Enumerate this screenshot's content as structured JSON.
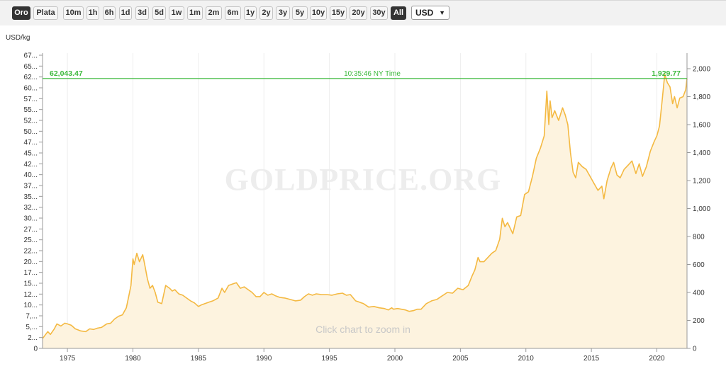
{
  "toolbar": {
    "metal_buttons": [
      {
        "label": "Oro",
        "active": true
      },
      {
        "label": "Plata",
        "active": false
      }
    ],
    "range_buttons": [
      {
        "label": "10m",
        "active": false
      },
      {
        "label": "1h",
        "active": false
      },
      {
        "label": "6h",
        "active": false
      },
      {
        "label": "1d",
        "active": false
      },
      {
        "label": "3d",
        "active": false
      },
      {
        "label": "5d",
        "active": false
      },
      {
        "label": "1w",
        "active": false
      },
      {
        "label": "1m",
        "active": false
      },
      {
        "label": "2m",
        "active": false
      },
      {
        "label": "6m",
        "active": false
      },
      {
        "label": "1y",
        "active": false
      },
      {
        "label": "2y",
        "active": false
      },
      {
        "label": "3y",
        "active": false
      },
      {
        "label": "5y",
        "active": false
      },
      {
        "label": "10y",
        "active": false
      },
      {
        "label": "15y",
        "active": false
      },
      {
        "label": "20y",
        "active": false
      },
      {
        "label": "30y",
        "active": false
      },
      {
        "label": "All",
        "active": true
      }
    ],
    "currency_select": {
      "value": "USD",
      "icon": "chevron-down-icon"
    }
  },
  "chart_data": {
    "type": "area",
    "ylabel": "USD/kg",
    "watermark": "GOLDPRICE.ORG",
    "hint": "Click chart to zoom in",
    "x_ticks": [
      "1975",
      "1980",
      "1985",
      "1990",
      "1995",
      "2000",
      "2005",
      "2010",
      "2015",
      "2020"
    ],
    "xlim": [
      1973.1,
      2022.3
    ],
    "y_left_ticks": [
      "0",
      "2...",
      "5,...",
      "7,...",
      "10...",
      "12...",
      "15...",
      "17...",
      "20...",
      "22...",
      "25...",
      "27...",
      "30...",
      "32...",
      "35...",
      "37...",
      "40...",
      "42...",
      "45...",
      "47...",
      "50...",
      "52...",
      "55...",
      "57...",
      "60...",
      "62...",
      "65...",
      "67..."
    ],
    "y_right_ticks": [
      "0",
      "200",
      "400",
      "600",
      "800",
      "1,000",
      "1,200",
      "1,400",
      "1,600",
      "1,800",
      "2,000"
    ],
    "y_right_ylim": [
      0,
      2000
    ],
    "current_line": {
      "value": 1929.77,
      "left_label": "62,043.47",
      "right_label": "1,929.77",
      "center_label": "10:35:46 NY Time"
    },
    "colors": {
      "line": "#f4b942",
      "fill": "#fdf3df",
      "current": "#3cb93c",
      "axis_text": "#333333",
      "grid": "#ededed"
    },
    "series": [
      {
        "x": [
          1973.1,
          1973.3,
          1973.5,
          1973.7,
          1974.0,
          1974.2,
          1974.5,
          1974.8,
          1975.0,
          1975.3,
          1975.6,
          1976.0,
          1976.4,
          1976.7,
          1977.0,
          1977.3,
          1977.6,
          1978.0,
          1978.3,
          1978.6,
          1978.9,
          1979.2,
          1979.5,
          1979.7,
          1979.85,
          1980.0,
          1980.1,
          1980.3,
          1980.5,
          1980.75,
          1980.9,
          1981.1,
          1981.3,
          1981.5,
          1981.7,
          1981.9,
          1982.2,
          1982.5,
          1982.8,
          1983.0,
          1983.2,
          1983.5,
          1983.8,
          1984.1,
          1984.4,
          1984.7,
          1985.0,
          1985.2,
          1985.5,
          1985.8,
          1986.1,
          1986.5,
          1986.8,
          1987.0,
          1987.3,
          1987.6,
          1987.9,
          1988.2,
          1988.5,
          1988.8,
          1989.1,
          1989.4,
          1989.7,
          1990.0,
          1990.3,
          1990.6,
          1990.9,
          1991.2,
          1991.6,
          1992.0,
          1992.4,
          1992.8,
          1993.1,
          1993.4,
          1993.7,
          1994.0,
          1994.4,
          1994.8,
          1995.2,
          1995.6,
          1996.0,
          1996.3,
          1996.6,
          1997.0,
          1997.3,
          1997.6,
          1998.0,
          1998.4,
          1998.8,
          1999.2,
          1999.5,
          1999.75,
          1999.9,
          2000.2,
          2000.5,
          2000.8,
          2001.1,
          2001.4,
          2001.7,
          2002.0,
          2002.4,
          2002.8,
          2003.2,
          2003.6,
          2004.0,
          2004.4,
          2004.8,
          2005.2,
          2005.6,
          2005.9,
          2006.1,
          2006.35,
          2006.5,
          2006.8,
          2007.1,
          2007.4,
          2007.7,
          2008.0,
          2008.2,
          2008.4,
          2008.6,
          2008.8,
          2009.0,
          2009.3,
          2009.6,
          2009.9,
          2010.2,
          2010.5,
          2010.8,
          2011.1,
          2011.4,
          2011.6,
          2011.75,
          2011.85,
          2012.0,
          2012.2,
          2012.5,
          2012.8,
          2013.0,
          2013.2,
          2013.4,
          2013.6,
          2013.8,
          2014.0,
          2014.3,
          2014.6,
          2014.9,
          2015.2,
          2015.5,
          2015.8,
          2015.95,
          2016.2,
          2016.5,
          2016.7,
          2016.95,
          2017.2,
          2017.5,
          2017.8,
          2018.1,
          2018.4,
          2018.65,
          2018.9,
          2019.2,
          2019.5,
          2019.8,
          2020.0,
          2020.2,
          2020.4,
          2020.6,
          2020.8,
          2021.0,
          2021.2,
          2021.35,
          2021.55,
          2021.75,
          2022.0,
          2022.2,
          2022.3
        ],
        "values": [
          70,
          95,
          120,
          100,
          140,
          175,
          160,
          180,
          175,
          165,
          140,
          125,
          120,
          140,
          135,
          145,
          150,
          175,
          180,
          210,
          230,
          240,
          290,
          380,
          450,
          640,
          600,
          680,
          620,
          670,
          600,
          500,
          430,
          450,
          400,
          330,
          320,
          450,
          430,
          410,
          420,
          390,
          380,
          360,
          340,
          325,
          300,
          310,
          320,
          330,
          340,
          360,
          430,
          400,
          450,
          460,
          470,
          430,
          440,
          420,
          400,
          370,
          370,
          400,
          380,
          390,
          375,
          365,
          360,
          350,
          340,
          345,
          370,
          390,
          380,
          390,
          385,
          385,
          380,
          390,
          395,
          380,
          385,
          340,
          330,
          320,
          295,
          300,
          290,
          285,
          275,
          290,
          280,
          285,
          280,
          275,
          265,
          270,
          280,
          280,
          320,
          340,
          350,
          375,
          400,
          395,
          430,
          420,
          450,
          520,
          560,
          650,
          620,
          620,
          650,
          680,
          700,
          780,
          930,
          870,
          900,
          860,
          820,
          940,
          950,
          1100,
          1120,
          1230,
          1360,
          1430,
          1520,
          1840,
          1600,
          1770,
          1650,
          1700,
          1630,
          1720,
          1670,
          1600,
          1400,
          1260,
          1220,
          1330,
          1300,
          1280,
          1230,
          1180,
          1130,
          1160,
          1070,
          1200,
          1290,
          1330,
          1240,
          1220,
          1280,
          1310,
          1340,
          1250,
          1320,
          1230,
          1300,
          1410,
          1480,
          1520,
          1590,
          1770,
          1960,
          1900,
          1870,
          1750,
          1800,
          1720,
          1790,
          1800,
          1850,
          1930
        ]
      }
    ]
  }
}
